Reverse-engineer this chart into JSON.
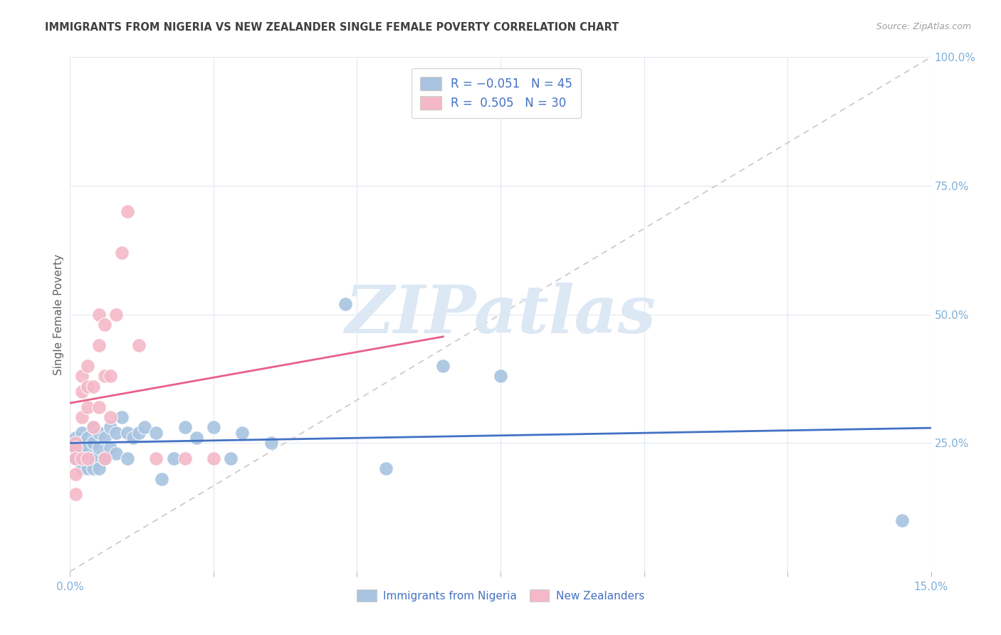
{
  "title": "IMMIGRANTS FROM NIGERIA VS NEW ZEALANDER SINGLE FEMALE POVERTY CORRELATION CHART",
  "source": "Source: ZipAtlas.com",
  "ylabel": "Single Female Poverty",
  "xlim": [
    0.0,
    0.15
  ],
  "ylim": [
    0.0,
    1.0
  ],
  "yticks": [
    0.0,
    0.25,
    0.5,
    0.75,
    1.0
  ],
  "ytick_labels": [
    "",
    "25.0%",
    "50.0%",
    "75.0%",
    "100.0%"
  ],
  "xticks": [
    0.0,
    0.025,
    0.05,
    0.075,
    0.1,
    0.125,
    0.15
  ],
  "xtick_labels": [
    "0.0%",
    "",
    "",
    "",
    "",
    "",
    "15.0%"
  ],
  "nigeria_color": "#a8c4e0",
  "nz_color": "#f4b8c8",
  "nigeria_line_color": "#4472c4",
  "nz_line_color": "#e8608a",
  "diagonal_color": "#c8c8c8",
  "background_color": "#ffffff",
  "grid_color": "#e0e8f0",
  "title_color": "#404040",
  "axis_label_color": "#7fb0d8",
  "watermark_text": "ZIPatlas",
  "watermark_color": "#dce8f4",
  "nigeria_points_x": [
    0.001,
    0.001,
    0.001,
    0.002,
    0.002,
    0.002,
    0.002,
    0.002,
    0.003,
    0.003,
    0.003,
    0.003,
    0.004,
    0.004,
    0.004,
    0.004,
    0.005,
    0.005,
    0.005,
    0.006,
    0.006,
    0.007,
    0.007,
    0.008,
    0.008,
    0.009,
    0.01,
    0.01,
    0.011,
    0.012,
    0.013,
    0.015,
    0.016,
    0.018,
    0.02,
    0.022,
    0.025,
    0.028,
    0.03,
    0.035,
    0.048,
    0.055,
    0.065,
    0.075,
    0.145
  ],
  "nigeria_points_y": [
    0.26,
    0.24,
    0.22,
    0.27,
    0.25,
    0.23,
    0.21,
    0.2,
    0.26,
    0.24,
    0.22,
    0.2,
    0.28,
    0.25,
    0.22,
    0.2,
    0.27,
    0.24,
    0.2,
    0.26,
    0.22,
    0.28,
    0.24,
    0.27,
    0.23,
    0.3,
    0.27,
    0.22,
    0.26,
    0.27,
    0.28,
    0.27,
    0.18,
    0.22,
    0.28,
    0.26,
    0.28,
    0.22,
    0.27,
    0.25,
    0.52,
    0.2,
    0.4,
    0.38,
    0.1
  ],
  "nz_points_x": [
    0.001,
    0.001,
    0.001,
    0.001,
    0.001,
    0.002,
    0.002,
    0.002,
    0.002,
    0.003,
    0.003,
    0.003,
    0.003,
    0.004,
    0.004,
    0.005,
    0.005,
    0.005,
    0.006,
    0.006,
    0.006,
    0.007,
    0.007,
    0.008,
    0.009,
    0.01,
    0.012,
    0.015,
    0.02,
    0.025
  ],
  "nz_points_y": [
    0.25,
    0.24,
    0.22,
    0.19,
    0.15,
    0.38,
    0.35,
    0.3,
    0.22,
    0.4,
    0.36,
    0.32,
    0.22,
    0.36,
    0.28,
    0.5,
    0.44,
    0.32,
    0.48,
    0.38,
    0.22,
    0.38,
    0.3,
    0.5,
    0.62,
    0.7,
    0.44,
    0.22,
    0.22,
    0.22
  ],
  "nz_line_x_start": 0.0,
  "nz_line_x_end": 0.065,
  "nigeria_line_x_start": 0.0,
  "nigeria_line_x_end": 0.15
}
